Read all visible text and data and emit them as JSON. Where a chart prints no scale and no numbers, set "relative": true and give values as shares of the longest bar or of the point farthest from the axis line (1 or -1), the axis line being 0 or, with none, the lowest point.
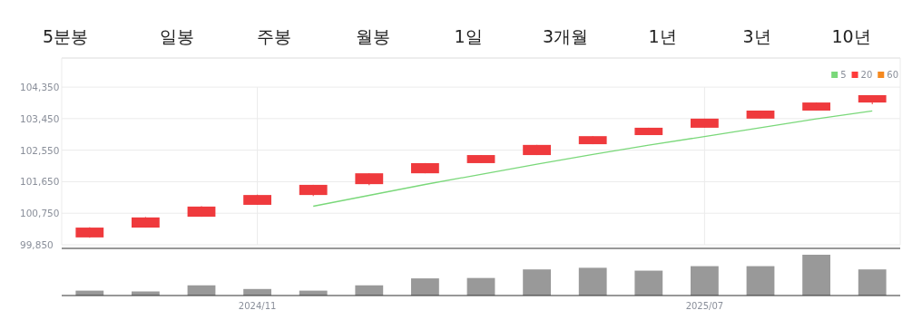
{
  "chart_data": [
    {
      "type": "other",
      "annotations": [
        "5분봉",
        "일봉",
        "주봉",
        "월봉",
        "1일",
        "3개월",
        "1년",
        "3년",
        "10년"
      ]
    },
    {
      "type": "candlestick",
      "categories": [
        null,
        null,
        null,
        "2024/11",
        null,
        null,
        null,
        null,
        null,
        null,
        null,
        "2025/07",
        null,
        null,
        null
      ],
      "color": "#ef3a3d",
      "ohlc": [
        [
          100060,
          100350,
          100050,
          100340
        ],
        [
          100340,
          100640,
          100340,
          100630
        ],
        [
          100650,
          100950,
          100650,
          100940
        ],
        [
          100990,
          101280,
          100990,
          101270
        ],
        [
          101270,
          101560,
          101240,
          101560
        ],
        [
          101580,
          101890,
          101550,
          101890
        ],
        [
          101890,
          102180,
          101890,
          102180
        ],
        [
          102180,
          102410,
          102180,
          102410
        ],
        [
          102410,
          102700,
          102410,
          102700
        ],
        [
          102720,
          102950,
          102720,
          102950
        ],
        [
          102980,
          103190,
          102980,
          103190
        ],
        [
          103190,
          103450,
          103190,
          103450
        ],
        [
          103450,
          103680,
          103450,
          103680
        ],
        [
          103680,
          103910,
          103680,
          103910
        ],
        [
          103910,
          104120,
          103860,
          104120
        ]
      ],
      "series": [
        {
          "name": "5",
          "type": "line",
          "color": "#7ad87a",
          "values": [
            null,
            null,
            null,
            null,
            100950,
            101260,
            101570,
            101860,
            102150,
            102430,
            102690,
            102940,
            103190,
            103440,
            103670
          ]
        },
        {
          "name": "20",
          "type": "line",
          "color": "#ff3b3b",
          "values": [
            null,
            null,
            null,
            null,
            null,
            null,
            null,
            null,
            null,
            null,
            null,
            null,
            null,
            null,
            null
          ]
        },
        {
          "name": "60",
          "type": "line",
          "color": "#f5891f",
          "values": [
            null,
            null,
            null,
            null,
            null,
            null,
            null,
            null,
            null,
            null,
            null,
            null,
            null,
            null,
            null
          ]
        }
      ],
      "ylim": [
        99850,
        105180
      ],
      "yticks": [
        {
          "value": 99850,
          "label": "99,850"
        },
        {
          "value": 100750,
          "label": "100,750"
        },
        {
          "value": 101650,
          "label": "101,650"
        },
        {
          "value": 102550,
          "label": "102,550"
        },
        {
          "value": 103450,
          "label": "103,450"
        },
        {
          "value": 104350,
          "label": "104,350"
        }
      ],
      "grid": true,
      "legend": "top right",
      "tick_labels": "y"
    },
    {
      "type": "bar",
      "relative": true,
      "color": "#999999",
      "categories": [
        null,
        null,
        null,
        "2024/11",
        null,
        null,
        null,
        null,
        null,
        null,
        null,
        "2025/07",
        null,
        null,
        null
      ],
      "values": [
        0.12,
        0.1,
        0.25,
        0.16,
        0.12,
        0.25,
        0.42,
        0.43,
        0.64,
        0.68,
        0.61,
        0.72,
        0.72,
        1,
        0.64
      ],
      "tick_labels": "x"
    }
  ]
}
